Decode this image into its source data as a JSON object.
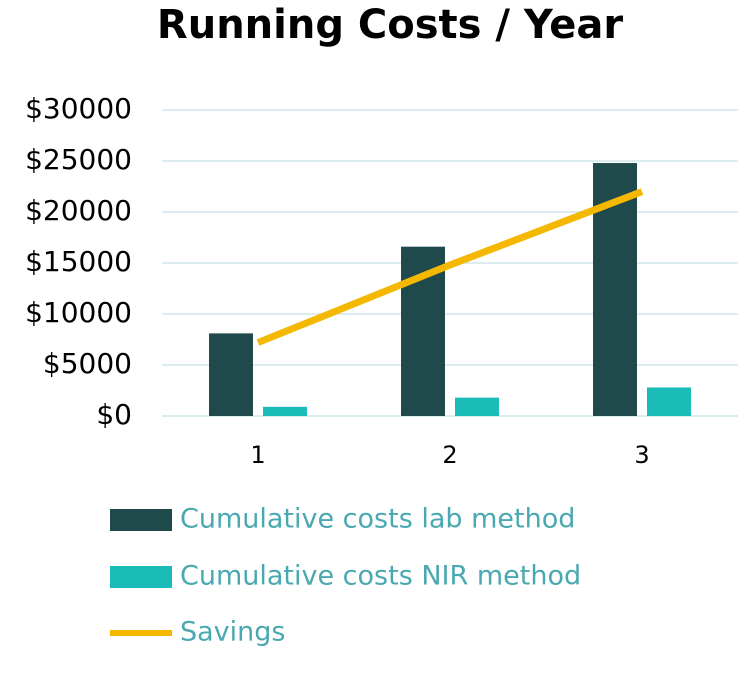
{
  "chart_data": {
    "type": "bar",
    "title": "Running Costs / Year",
    "categories": [
      "1",
      "2",
      "3"
    ],
    "series": [
      {
        "name": "Cumulative costs lab method",
        "color": "#1f4a4b",
        "type": "bar",
        "values": [
          8100,
          16600,
          24800
        ]
      },
      {
        "name": "Cumulative costs NIR method",
        "color": "#1bbcb8",
        "type": "bar",
        "values": [
          900,
          1800,
          2800
        ]
      },
      {
        "name": "Savings",
        "color": "#f5b800",
        "type": "line",
        "values": [
          7200,
          14800,
          22000
        ]
      }
    ],
    "ylim": [
      0,
      30000
    ],
    "yticks": [
      {
        "value": 0,
        "label": "$0"
      },
      {
        "value": 5000,
        "label": "$5000"
      },
      {
        "value": 10000,
        "label": "$10000"
      },
      {
        "value": 15000,
        "label": "$15000"
      },
      {
        "value": 20000,
        "label": "$20000"
      },
      {
        "value": 25000,
        "label": "$25000"
      },
      {
        "value": 30000,
        "label": "$30000"
      }
    ],
    "grid": true,
    "legend": "bottom"
  }
}
